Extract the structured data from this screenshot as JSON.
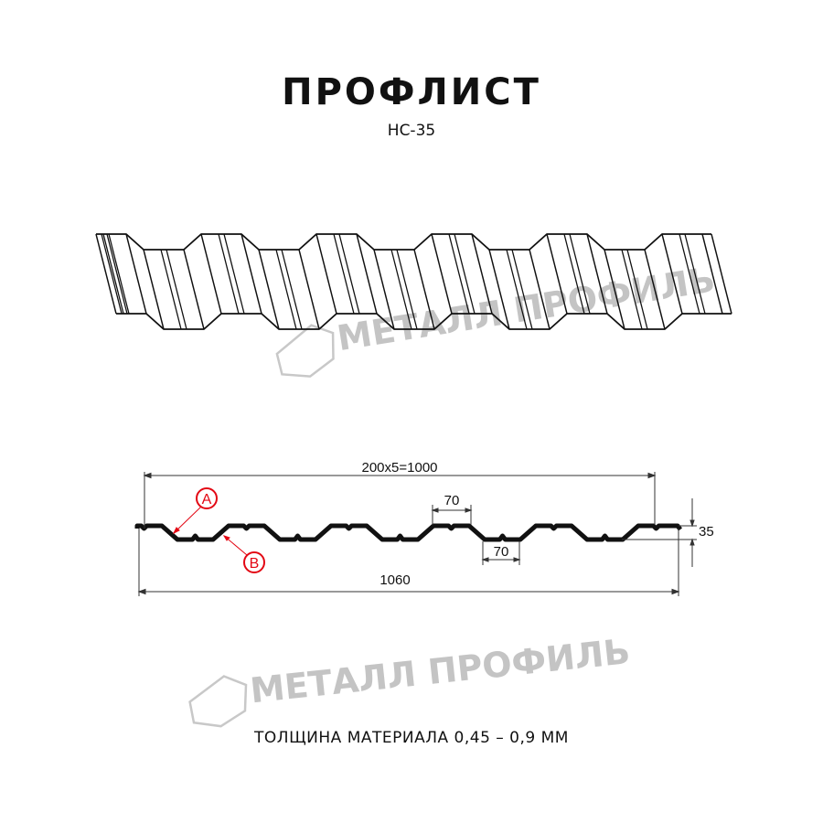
{
  "header": {
    "title": "ПРОФЛИСТ",
    "subtitle": "НС-35"
  },
  "watermark": {
    "text": "МЕТАЛЛ ПРОФИЛЬ",
    "color": "#c4c4c4"
  },
  "drawing": {
    "pitch_dimension": "200x5=1000",
    "top_width_dimension": "70",
    "bottom_width_dimension": "70",
    "height_dimension": "35",
    "overall_width_dimension": "1060",
    "label_a": "A",
    "label_b": "B",
    "label_color": "#e30613"
  },
  "footer": {
    "thickness": "ТОЛЩИНА МАТЕРИАЛА 0,45 – 0,9 ММ"
  }
}
